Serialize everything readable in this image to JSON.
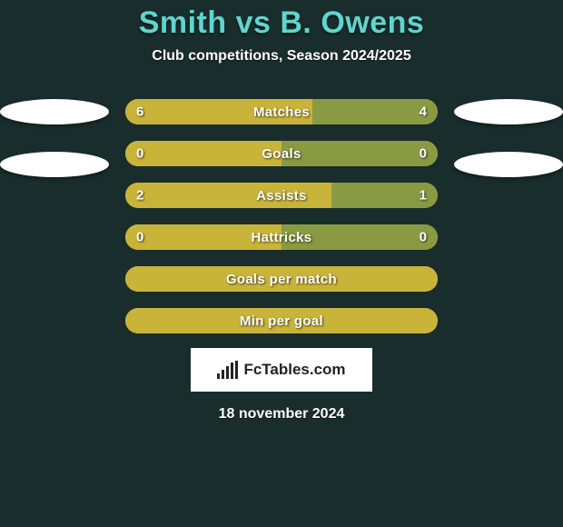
{
  "title": {
    "player1": "Smith",
    "vs": "vs",
    "player2": "B. Owens",
    "player1_color": "#5dd6cf",
    "vs_color": "#5dd6cf",
    "player2_color": "#5dd6cf"
  },
  "subtitle": "Club competitions, Season 2024/2025",
  "background_color": "#1a2d2d",
  "bar_track_color": "#a59128",
  "left_fill_color": "#c9b43a",
  "right_fill_color": "#8a9a42",
  "neutral_fill_color": "#c9b43a",
  "row_width": 344,
  "rows": [
    {
      "label": "Matches",
      "left": "6",
      "right": "4",
      "left_pct": 60,
      "right_pct": 40,
      "show_values": true,
      "force_neutral": false
    },
    {
      "label": "Goals",
      "left": "0",
      "right": "0",
      "left_pct": 50,
      "right_pct": 50,
      "show_values": true,
      "force_neutral": false
    },
    {
      "label": "Assists",
      "left": "2",
      "right": "1",
      "left_pct": 66,
      "right_pct": 34,
      "show_values": true,
      "force_neutral": false
    },
    {
      "label": "Hattricks",
      "left": "0",
      "right": "0",
      "left_pct": 50,
      "right_pct": 50,
      "show_values": true,
      "force_neutral": false
    },
    {
      "label": "Goals per match",
      "left": "",
      "right": "",
      "left_pct": 100,
      "right_pct": 0,
      "show_values": false,
      "force_neutral": true
    },
    {
      "label": "Min per goal",
      "left": "",
      "right": "",
      "left_pct": 100,
      "right_pct": 0,
      "show_values": false,
      "force_neutral": true
    }
  ],
  "logo_text": "FcTables.com",
  "date": "18 november 2024"
}
